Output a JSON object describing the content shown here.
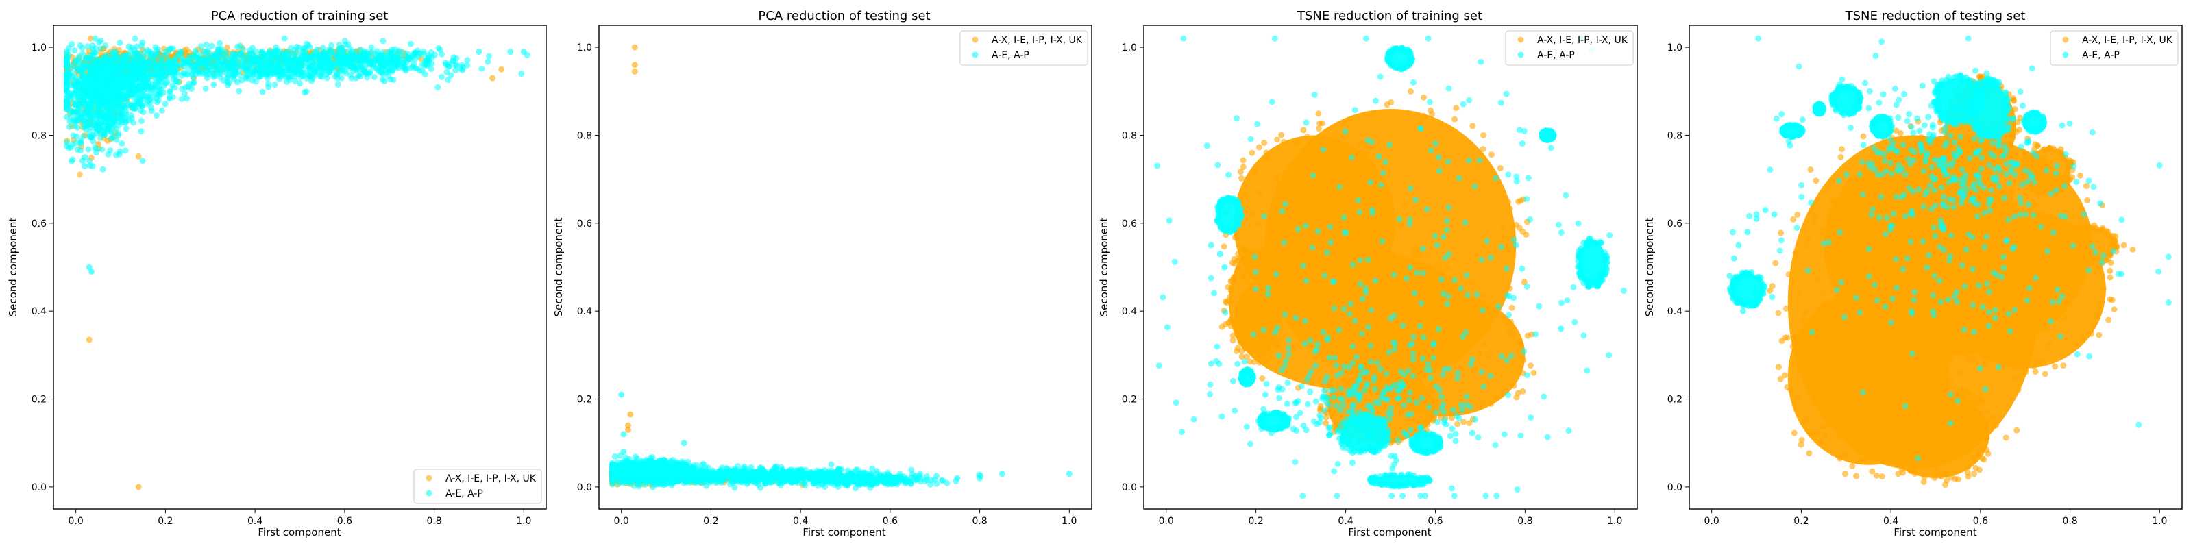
{
  "colors": {
    "series_a": "#FFA500",
    "series_b": "#00FFFF",
    "frame": "#000000"
  },
  "chart_data": [
    {
      "type": "scatter",
      "title": "PCA reduction of training set",
      "xlabel": "First component",
      "ylabel": "Second component",
      "xlim": [
        -0.05,
        1.05
      ],
      "ylim": [
        -0.05,
        1.05
      ],
      "xticks": [
        "0.0",
        "0.2",
        "0.4",
        "0.6",
        "0.8",
        "1.0"
      ],
      "yticks": [
        "0.0",
        "0.2",
        "0.4",
        "0.6",
        "0.8",
        "1.0"
      ],
      "legend_position": "lower right",
      "series": [
        {
          "name": "A-X, I-E, I-P, I-X, UK",
          "color": "#FFA500",
          "clusters": [
            {
              "cx": 0.1,
              "cy": 0.96,
              "sx": 0.06,
              "sy": 0.015,
              "n": 260
            },
            {
              "cx": 0.05,
              "cy": 0.88,
              "sx": 0.04,
              "sy": 0.05,
              "n": 120
            },
            {
              "cx": 0.3,
              "cy": 0.97,
              "sx": 0.12,
              "sy": 0.012,
              "n": 220
            },
            {
              "cx": 0.6,
              "cy": 0.98,
              "sx": 0.08,
              "sy": 0.01,
              "n": 80
            }
          ],
          "points": [
            [
              0.03,
              0.335
            ],
            [
              0.14,
              0.0
            ],
            [
              0.93,
              0.93
            ],
            [
              0.95,
              0.95
            ],
            [
              0.05,
              0.78
            ],
            [
              0.02,
              0.8
            ]
          ]
        },
        {
          "name": "A-E, A-P",
          "color": "#00FFFF",
          "clusters": [
            {
              "cx": 0.08,
              "cy": 0.92,
              "sx": 0.06,
              "sy": 0.035,
              "n": 900
            },
            {
              "cx": 0.05,
              "cy": 0.85,
              "sx": 0.035,
              "sy": 0.05,
              "n": 300
            },
            {
              "cx": 0.4,
              "cy": 0.96,
              "sx": 0.18,
              "sy": 0.02,
              "n": 900
            },
            {
              "cx": 0.65,
              "cy": 0.975,
              "sx": 0.12,
              "sy": 0.012,
              "n": 250
            }
          ],
          "points": [
            [
              0.02,
              0.75
            ],
            [
              0.02,
              0.73
            ],
            [
              0.03,
              0.5
            ],
            [
              0.035,
              0.49
            ],
            [
              0.9,
              0.99
            ],
            [
              0.97,
              0.99
            ],
            [
              1.0,
              0.99
            ],
            [
              0.85,
              0.96
            ]
          ]
        }
      ]
    },
    {
      "type": "scatter",
      "title": "PCA reduction of testing set",
      "xlabel": "First component",
      "ylabel": "Second component",
      "xlim": [
        -0.05,
        1.05
      ],
      "ylim": [
        -0.05,
        1.05
      ],
      "xticks": [
        "0.0",
        "0.2",
        "0.4",
        "0.6",
        "0.8",
        "1.0"
      ],
      "yticks": [
        "0.0",
        "0.2",
        "0.4",
        "0.6",
        "0.8",
        "1.0"
      ],
      "legend_position": "upper right",
      "series": [
        {
          "name": "A-X, I-E, I-P, I-X, UK",
          "color": "#FFA500",
          "clusters": [
            {
              "cx": 0.05,
              "cy": 0.02,
              "sx": 0.04,
              "sy": 0.006,
              "n": 200
            },
            {
              "cx": 0.2,
              "cy": 0.02,
              "sx": 0.08,
              "sy": 0.005,
              "n": 120
            }
          ],
          "points": [
            [
              0.03,
              1.0
            ],
            [
              0.03,
              0.96
            ],
            [
              0.03,
              0.945
            ],
            [
              0.02,
              0.165
            ],
            [
              0.015,
              0.14
            ],
            [
              0.015,
              0.13
            ]
          ]
        },
        {
          "name": "A-E, A-P",
          "color": "#00FFFF",
          "clusters": [
            {
              "cx": 0.06,
              "cy": 0.035,
              "sx": 0.05,
              "sy": 0.012,
              "n": 900
            },
            {
              "cx": 0.3,
              "cy": 0.025,
              "sx": 0.14,
              "sy": 0.008,
              "n": 900
            },
            {
              "cx": 0.55,
              "cy": 0.015,
              "sx": 0.08,
              "sy": 0.006,
              "n": 250
            }
          ],
          "points": [
            [
              0.0,
              0.21
            ],
            [
              0.005,
              0.08
            ],
            [
              0.14,
              0.1
            ],
            [
              0.8,
              0.02
            ],
            [
              0.85,
              0.03
            ],
            [
              1.0,
              0.03
            ],
            [
              0.75,
              0.02
            ],
            [
              0.005,
              0.12
            ]
          ]
        }
      ]
    },
    {
      "type": "scatter",
      "title": "TSNE reduction of training set",
      "xlabel": "First component",
      "ylabel": "Second component",
      "xlim": [
        -0.05,
        1.05
      ],
      "ylim": [
        -0.05,
        1.05
      ],
      "xticks": [
        "0.0",
        "0.2",
        "0.4",
        "0.6",
        "0.8",
        "1.0"
      ],
      "yticks": [
        "0.0",
        "0.2",
        "0.4",
        "0.6",
        "0.8",
        "1.0"
      ],
      "legend_position": "upper right",
      "series": [
        {
          "name": "A-X, I-E, I-P, I-X, UK",
          "color": "#FFA500",
          "blobs": [
            {
              "cx": 0.5,
              "cy": 0.55,
              "rx": 0.28,
              "ry": 0.31
            },
            {
              "cx": 0.42,
              "cy": 0.38,
              "rx": 0.27,
              "ry": 0.16
            },
            {
              "cx": 0.33,
              "cy": 0.6,
              "rx": 0.18,
              "ry": 0.2
            },
            {
              "cx": 0.62,
              "cy": 0.3,
              "rx": 0.18,
              "ry": 0.14
            },
            {
              "cx": 0.48,
              "cy": 0.18,
              "rx": 0.12,
              "ry": 0.08
            },
            {
              "cx": 0.2,
              "cy": 0.42,
              "rx": 0.06,
              "ry": 0.12
            }
          ],
          "points": []
        },
        {
          "name": "A-E, A-P",
          "color": "#00FFFF",
          "blobs": [
            {
              "cx": 0.52,
              "cy": 0.975,
              "rx": 0.025,
              "ry": 0.022
            },
            {
              "cx": 0.14,
              "cy": 0.62,
              "rx": 0.025,
              "ry": 0.035
            },
            {
              "cx": 0.95,
              "cy": 0.51,
              "rx": 0.03,
              "ry": 0.05
            },
            {
              "cx": 0.52,
              "cy": 0.015,
              "rx": 0.06,
              "ry": 0.012
            },
            {
              "cx": 0.44,
              "cy": 0.12,
              "rx": 0.05,
              "ry": 0.04
            },
            {
              "cx": 0.24,
              "cy": 0.15,
              "rx": 0.03,
              "ry": 0.018
            },
            {
              "cx": 0.58,
              "cy": 0.1,
              "rx": 0.03,
              "ry": 0.02
            },
            {
              "cx": 0.18,
              "cy": 0.25,
              "rx": 0.012,
              "ry": 0.015
            },
            {
              "cx": 0.85,
              "cy": 0.8,
              "rx": 0.012,
              "ry": 0.01
            }
          ],
          "clusters": [
            {
              "cx": 0.5,
              "cy": 0.45,
              "sx": 0.22,
              "sy": 0.25,
              "n": 300
            },
            {
              "cx": 0.45,
              "cy": 0.2,
              "sx": 0.12,
              "sy": 0.06,
              "n": 200
            }
          ],
          "points": [
            [
              0.12,
              0.53
            ],
            [
              0.1,
              0.55
            ],
            [
              0.13,
              0.5
            ],
            [
              0.78,
              0.55
            ],
            [
              0.88,
              0.36
            ]
          ]
        }
      ]
    },
    {
      "type": "scatter",
      "title": "TSNE reduction of testing set",
      "xlabel": "First component",
      "ylabel": "Second component",
      "xlim": [
        -0.05,
        1.05
      ],
      "ylim": [
        -0.05,
        1.05
      ],
      "xticks": [
        "0.0",
        "0.2",
        "0.4",
        "0.6",
        "0.8",
        "1.0"
      ],
      "yticks": [
        "0.0",
        "0.2",
        "0.4",
        "0.6",
        "0.8",
        "1.0"
      ],
      "legend_position": "upper right",
      "series": [
        {
          "name": "A-X, I-E, I-P, I-X, UK",
          "color": "#FFA500",
          "blobs": [
            {
              "cx": 0.45,
              "cy": 0.42,
              "rx": 0.28,
              "ry": 0.38
            },
            {
              "cx": 0.55,
              "cy": 0.55,
              "rx": 0.3,
              "ry": 0.25
            },
            {
              "cx": 0.7,
              "cy": 0.45,
              "rx": 0.18,
              "ry": 0.18
            },
            {
              "cx": 0.35,
              "cy": 0.25,
              "rx": 0.18,
              "ry": 0.2
            },
            {
              "cx": 0.5,
              "cy": 0.12,
              "rx": 0.12,
              "ry": 0.1
            },
            {
              "cx": 0.6,
              "cy": 0.82,
              "rx": 0.08,
              "ry": 0.1
            },
            {
              "cx": 0.84,
              "cy": 0.55,
              "rx": 0.06,
              "ry": 0.04
            },
            {
              "cx": 0.75,
              "cy": 0.72,
              "rx": 0.05,
              "ry": 0.05
            }
          ],
          "points": [
            [
              0.9,
              0.56
            ],
            [
              0.92,
              0.55
            ],
            [
              0.94,
              0.54
            ]
          ]
        },
        {
          "name": "A-E, A-P",
          "color": "#00FFFF",
          "blobs": [
            {
              "cx": 0.08,
              "cy": 0.45,
              "rx": 0.035,
              "ry": 0.035
            },
            {
              "cx": 0.3,
              "cy": 0.88,
              "rx": 0.03,
              "ry": 0.03
            },
            {
              "cx": 0.38,
              "cy": 0.82,
              "rx": 0.02,
              "ry": 0.02
            },
            {
              "cx": 0.55,
              "cy": 0.88,
              "rx": 0.05,
              "ry": 0.05
            },
            {
              "cx": 0.62,
              "cy": 0.86,
              "rx": 0.04,
              "ry": 0.06
            },
            {
              "cx": 0.72,
              "cy": 0.83,
              "rx": 0.02,
              "ry": 0.02
            },
            {
              "cx": 0.18,
              "cy": 0.81,
              "rx": 0.02,
              "ry": 0.012
            },
            {
              "cx": 0.24,
              "cy": 0.86,
              "rx": 0.008,
              "ry": 0.01
            }
          ],
          "clusters": [
            {
              "cx": 0.5,
              "cy": 0.6,
              "sx": 0.2,
              "sy": 0.18,
              "n": 250
            },
            {
              "cx": 0.55,
              "cy": 0.75,
              "sx": 0.1,
              "sy": 0.08,
              "n": 200
            }
          ],
          "points": [
            [
              0.05,
              0.52
            ],
            [
              0.06,
              0.55
            ],
            [
              0.08,
              0.58
            ],
            [
              0.1,
              0.61
            ],
            [
              0.12,
              0.63
            ],
            [
              0.14,
              0.62
            ],
            [
              0.04,
              0.48
            ],
            [
              0.06,
              0.42
            ],
            [
              0.07,
              0.4
            ]
          ]
        }
      ]
    }
  ]
}
